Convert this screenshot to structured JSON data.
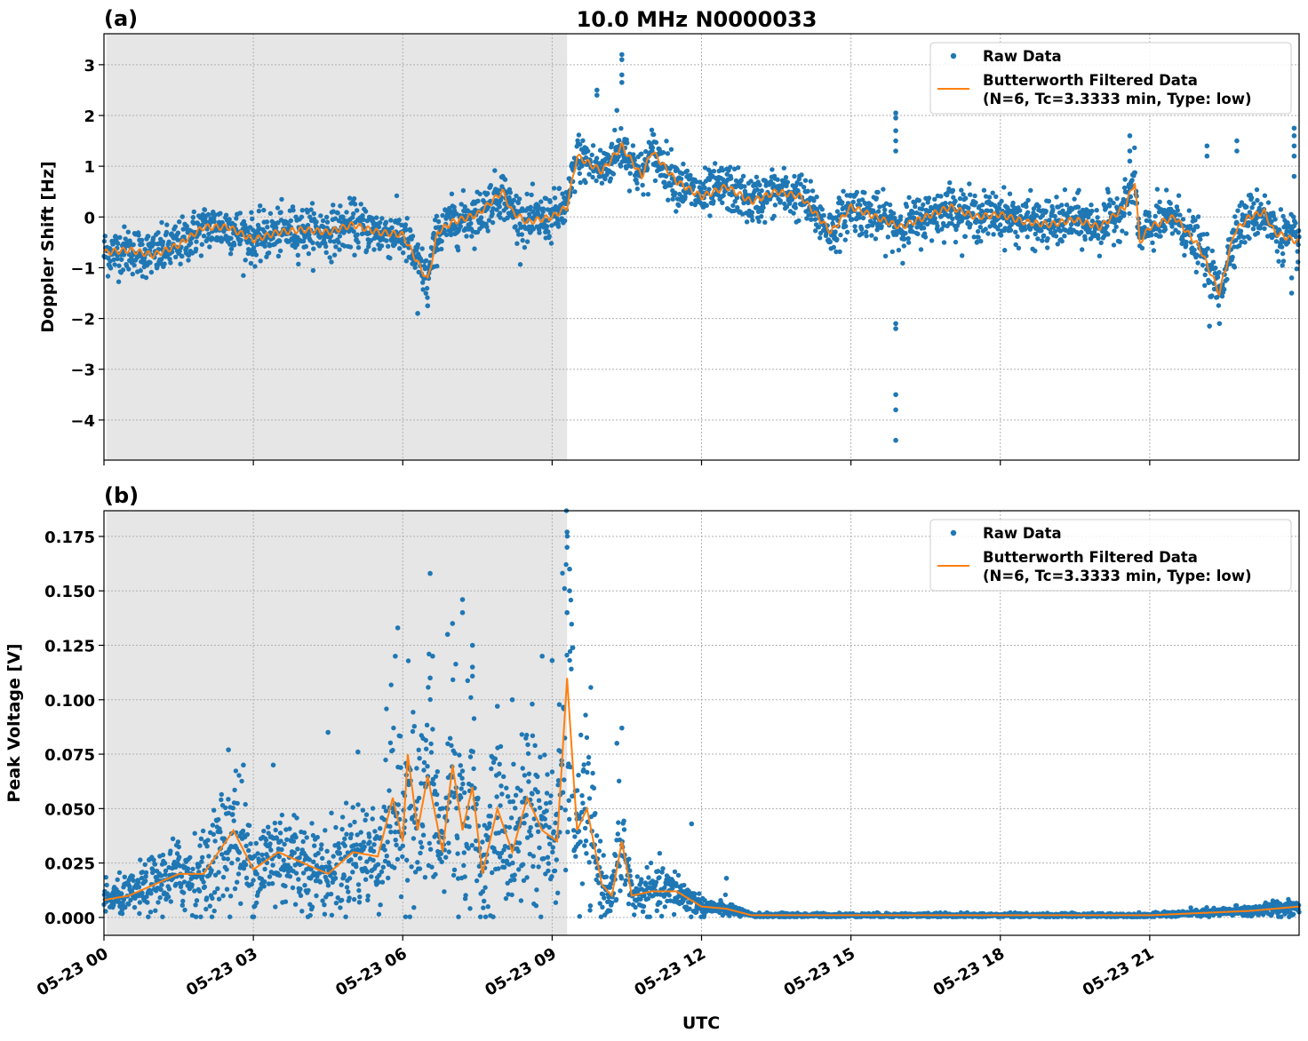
{
  "title": "10.0 MHz N0000033",
  "colors": {
    "raw": "#1f77b4",
    "filtered": "#ff7f0e",
    "shade": "#e6e6e6",
    "grid": "#b0b0b0"
  },
  "x_axis": {
    "label": "UTC",
    "range_hours": [
      0,
      24
    ],
    "tick_hours": [
      0,
      3,
      6,
      9,
      12,
      15,
      18,
      21
    ],
    "tick_labels": [
      "05-23 00",
      "05-23 03",
      "05-23 06",
      "05-23 09",
      "05-23 12",
      "05-23 15",
      "05-23 18",
      "05-23 21"
    ]
  },
  "legend": {
    "raw": "Raw Data",
    "filtered_line1": "Butterworth Filtered Data",
    "filtered_line2": "(N=6, Tc=3.3333 min, Type: low)",
    "placement": "upper-right"
  },
  "chart_data": [
    {
      "type": "scatter+line",
      "panel_label": "(a)",
      "ylabel": "Doppler Shift [Hz]",
      "ylim": [
        -4.79,
        3.61
      ],
      "yticks": [
        3,
        2,
        1,
        0,
        -1,
        -2,
        -3,
        -4
      ],
      "ytick_labels": [
        "3",
        "2",
        "1",
        "0",
        "−1",
        "−2",
        "−3",
        "−4"
      ],
      "grid": true,
      "shaded_hours": [
        0.05,
        9.3
      ],
      "filtered": {
        "x": [
          0,
          0.5,
          1,
          1.5,
          2,
          2.5,
          3,
          3.5,
          4,
          4.5,
          5,
          5.5,
          6,
          6.3,
          6.5,
          6.7,
          7,
          7.5,
          8,
          8.2,
          8.5,
          9,
          9.3,
          9.5,
          10,
          10.4,
          10.8,
          11,
          11.5,
          12,
          12.5,
          13,
          13.5,
          14,
          14.6,
          15,
          15.5,
          16,
          16.5,
          17,
          17.5,
          18,
          18.5,
          19,
          19.5,
          20,
          20.5,
          20.7,
          20.8,
          21,
          21.5,
          22,
          22.4,
          22.7,
          23,
          23.3,
          23.5,
          24
        ],
        "y": [
          -0.7,
          -0.65,
          -0.75,
          -0.55,
          -0.2,
          -0.2,
          -0.45,
          -0.3,
          -0.25,
          -0.3,
          -0.15,
          -0.3,
          -0.35,
          -0.9,
          -1.25,
          -0.3,
          -0.1,
          0.05,
          0.5,
          0.1,
          -0.1,
          0.0,
          0.2,
          1.2,
          0.9,
          1.4,
          0.8,
          1.3,
          0.7,
          0.4,
          0.6,
          0.3,
          0.5,
          0.4,
          -0.3,
          0.2,
          0.0,
          -0.2,
          0.0,
          0.2,
          0.0,
          0.05,
          -0.1,
          -0.15,
          -0.05,
          -0.2,
          0.2,
          0.7,
          -0.5,
          -0.2,
          0.0,
          -0.6,
          -1.5,
          -0.3,
          0.0,
          0.1,
          -0.3,
          -0.5
        ]
      },
      "raw_spread": 0.42,
      "raw_outliers": [
        [
          10.4,
          3.2
        ],
        [
          10.4,
          3.1
        ],
        [
          10.4,
          2.8
        ],
        [
          10.4,
          2.65
        ],
        [
          9.9,
          2.5
        ],
        [
          9.9,
          2.4
        ],
        [
          10.3,
          2.1
        ],
        [
          15.9,
          2.05
        ],
        [
          15.9,
          1.95
        ],
        [
          15.9,
          1.7
        ],
        [
          15.9,
          1.5
        ],
        [
          15.9,
          1.3
        ],
        [
          15.9,
          -2.1
        ],
        [
          15.9,
          -2.2
        ],
        [
          15.9,
          -3.5
        ],
        [
          15.9,
          -3.8
        ],
        [
          15.9,
          -4.4
        ],
        [
          20.6,
          1.6
        ],
        [
          20.6,
          1.3
        ],
        [
          20.6,
          1.1
        ],
        [
          22.15,
          1.4
        ],
        [
          22.15,
          1.2
        ],
        [
          22.75,
          1.5
        ],
        [
          22.75,
          1.3
        ],
        [
          23.9,
          1.75
        ],
        [
          23.9,
          1.6
        ],
        [
          23.9,
          1.4
        ],
        [
          23.9,
          1.2
        ],
        [
          23.9,
          0.8
        ],
        [
          23.85,
          -1.2
        ],
        [
          23.85,
          -1.5
        ],
        [
          6.3,
          -1.9
        ],
        [
          6.5,
          -1.75
        ],
        [
          22.2,
          -2.15
        ],
        [
          22.4,
          -2.1
        ]
      ]
    },
    {
      "type": "scatter+line",
      "panel_label": "(b)",
      "ylabel": "Peak Voltage [V]",
      "ylim": [
        -0.0082,
        0.1868
      ],
      "yticks": [
        0,
        0.025,
        0.05,
        0.075,
        0.1,
        0.125,
        0.15,
        0.175
      ],
      "ytick_labels": [
        "0.000",
        "0.025",
        "0.050",
        "0.075",
        "0.100",
        "0.125",
        "0.150",
        "0.175"
      ],
      "grid": true,
      "shaded_hours": [
        0.05,
        9.3
      ],
      "filtered": {
        "x": [
          0,
          0.5,
          1,
          1.5,
          2,
          2.3,
          2.6,
          3,
          3.5,
          4,
          4.5,
          5,
          5.5,
          5.8,
          6,
          6.1,
          6.3,
          6.5,
          6.8,
          7,
          7.2,
          7.4,
          7.6,
          7.9,
          8.2,
          8.5,
          8.8,
          9.1,
          9.3,
          9.5,
          9.7,
          10,
          10.2,
          10.4,
          10.6,
          11,
          11.5,
          12,
          12.5,
          13,
          14,
          16,
          18,
          20,
          21,
          22,
          23,
          24
        ],
        "y": [
          0.008,
          0.01,
          0.015,
          0.02,
          0.02,
          0.03,
          0.04,
          0.022,
          0.03,
          0.025,
          0.02,
          0.03,
          0.028,
          0.055,
          0.035,
          0.075,
          0.04,
          0.065,
          0.03,
          0.07,
          0.04,
          0.06,
          0.02,
          0.05,
          0.03,
          0.055,
          0.04,
          0.035,
          0.11,
          0.04,
          0.05,
          0.015,
          0.01,
          0.035,
          0.01,
          0.012,
          0.012,
          0.005,
          0.004,
          0.001,
          0.001,
          0.001,
          0.001,
          0.001,
          0.001,
          0.002,
          0.003,
          0.005
        ]
      },
      "raw_spread_fraction": 0.55,
      "raw_outliers": [
        [
          9.3,
          0.177
        ],
        [
          9.3,
          0.17
        ],
        [
          9.35,
          0.16
        ],
        [
          9.35,
          0.15
        ],
        [
          9.3,
          0.14
        ],
        [
          6.55,
          0.158
        ],
        [
          7.2,
          0.146
        ],
        [
          7.2,
          0.14
        ],
        [
          5.9,
          0.133
        ],
        [
          7.0,
          0.135
        ],
        [
          6.9,
          0.13
        ],
        [
          6.6,
          0.12
        ],
        [
          6.55,
          0.11
        ],
        [
          5.85,
          0.12
        ],
        [
          7.4,
          0.125
        ],
        [
          7.4,
          0.115
        ],
        [
          8.8,
          0.12
        ],
        [
          9.0,
          0.118
        ],
        [
          8.2,
          0.1
        ],
        [
          8.6,
          0.098
        ],
        [
          7.9,
          0.097
        ],
        [
          10.4,
          0.087
        ],
        [
          10.3,
          0.08
        ],
        [
          4.5,
          0.085
        ],
        [
          5.1,
          0.076
        ],
        [
          2.5,
          0.077
        ],
        [
          2.8,
          0.07
        ],
        [
          3.4,
          0.07
        ],
        [
          11.8,
          0.043
        ],
        [
          12.5,
          0.018
        ]
      ]
    }
  ]
}
